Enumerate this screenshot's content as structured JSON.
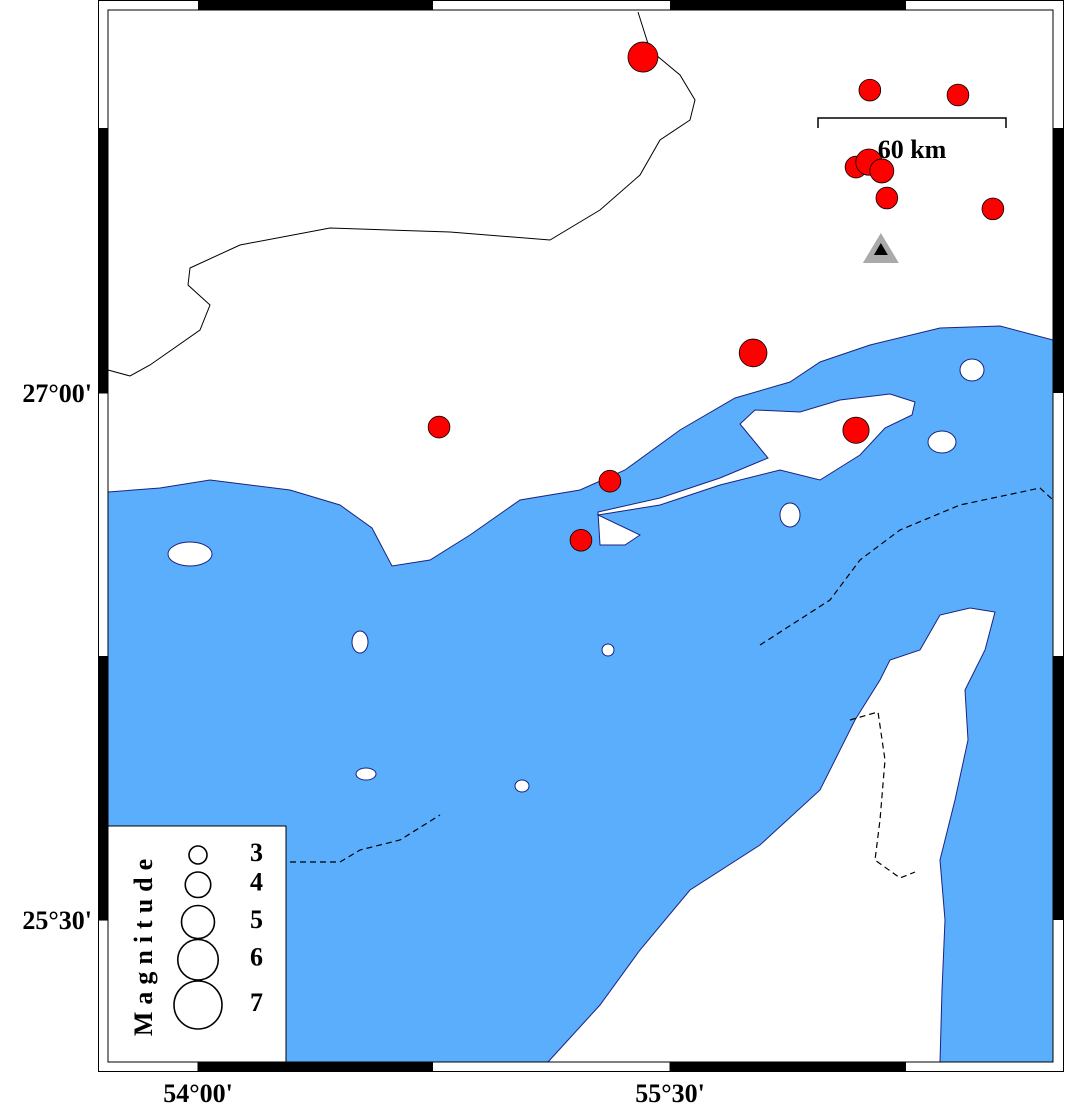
{
  "map": {
    "xlim": [
      53.714,
      56.717
    ],
    "ylim": [
      25.096,
      28.09
    ],
    "xticks": [
      {
        "value": 54,
        "label": "54°00'"
      },
      {
        "value": 55.5,
        "label": "55°30'"
      }
    ],
    "yticks": [
      {
        "value": 27,
        "label": "27°00'"
      },
      {
        "value": 25.5,
        "label": "25°30'"
      }
    ],
    "scale_label": "60 km",
    "legend_title": "Magnitude",
    "legend_magnitudes": [
      3,
      4,
      5,
      6,
      7
    ],
    "event_color": "#ff0000",
    "station": {
      "lon": 56.17,
      "lat": 27.407
    },
    "events": [
      {
        "lon": 55.414,
        "lat": 27.956,
        "magnitude": 4.6
      },
      {
        "lon": 56.135,
        "lat": 27.862,
        "magnitude": 3.5
      },
      {
        "lon": 56.415,
        "lat": 27.848,
        "magnitude": 3.5
      },
      {
        "lon": 56.091,
        "lat": 27.643,
        "magnitude": 3.5
      },
      {
        "lon": 56.132,
        "lat": 27.657,
        "magnitude": 4.1
      },
      {
        "lon": 56.173,
        "lat": 27.632,
        "magnitude": 3.8
      },
      {
        "lon": 56.189,
        "lat": 27.555,
        "magnitude": 3.5
      },
      {
        "lon": 56.526,
        "lat": 27.524,
        "magnitude": 3.5
      },
      {
        "lon": 55.764,
        "lat": 27.114,
        "magnitude": 4.3
      },
      {
        "lon": 54.766,
        "lat": 26.903,
        "magnitude": 3.5
      },
      {
        "lon": 56.091,
        "lat": 26.894,
        "magnitude": 4.1
      },
      {
        "lon": 55.309,
        "lat": 26.749,
        "magnitude": 3.5
      },
      {
        "lon": 55.217,
        "lat": 26.581,
        "magnitude": 3.5
      }
    ]
  }
}
